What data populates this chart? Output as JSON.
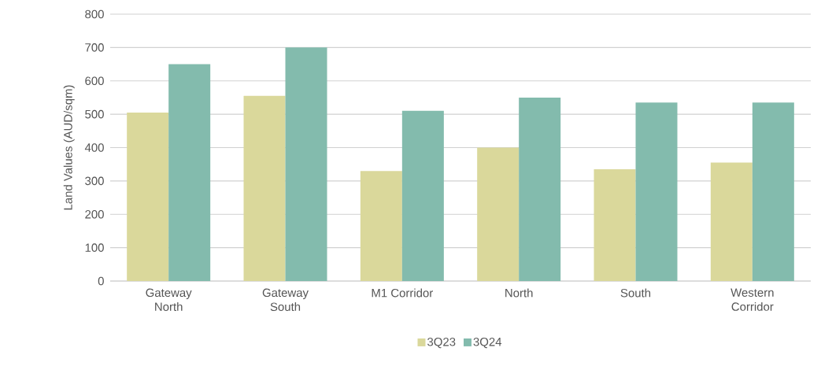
{
  "chart_data": {
    "type": "bar",
    "ylabel": "Land Values (AUD/sqm)",
    "categories": [
      "Gateway North",
      "Gateway South",
      "M1 Corridor",
      "North",
      "South",
      "Western Corridor"
    ],
    "series": [
      {
        "name": "3Q23",
        "color": "#dad89b",
        "values": [
          505,
          555,
          330,
          400,
          335,
          355
        ]
      },
      {
        "name": "3Q24",
        "color": "#83bbad",
        "values": [
          650,
          700,
          510,
          550,
          535,
          535
        ]
      }
    ],
    "ylim": [
      0,
      800
    ],
    "yticks": [
      0,
      100,
      200,
      300,
      400,
      500,
      600,
      700,
      800
    ],
    "grid": "y",
    "legend": "bottom"
  }
}
